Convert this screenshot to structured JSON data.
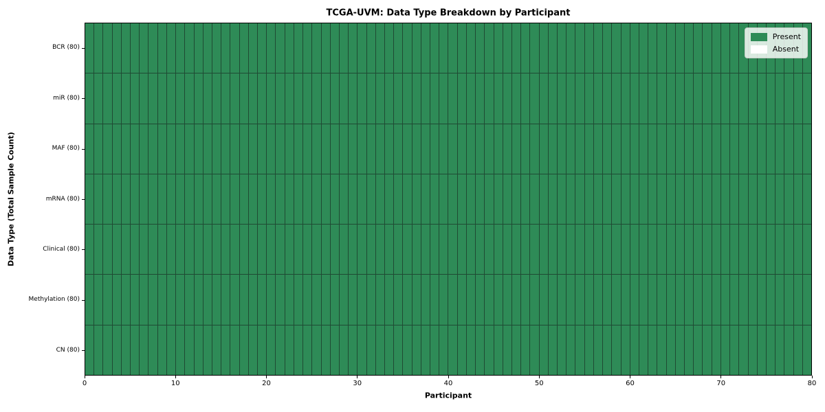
{
  "chart_data": {
    "type": "heatmap",
    "title": "TCGA-UVM: Data Type Breakdown by Participant",
    "xlabel": "Participant",
    "ylabel": "Data Type (Total Sample Count)",
    "categories_y": [
      "BCR (80)",
      "miR (80)",
      "MAF (80)",
      "mRNA (80)",
      "Clinical (80)",
      "Methylation (80)",
      "CN (80)"
    ],
    "n_participants": 80,
    "xlim": [
      0,
      80
    ],
    "x_ticks": [
      0,
      10,
      20,
      30,
      40,
      50,
      60,
      70,
      80
    ],
    "series": [
      {
        "name": "BCR (80)",
        "present": 80,
        "absent": 0
      },
      {
        "name": "miR (80)",
        "present": 80,
        "absent": 0
      },
      {
        "name": "MAF (80)",
        "present": 80,
        "absent": 0
      },
      {
        "name": "mRNA (80)",
        "present": 80,
        "absent": 0
      },
      {
        "name": "Clinical (80)",
        "present": 80,
        "absent": 0
      },
      {
        "name": "Methylation (80)",
        "present": 80,
        "absent": 0
      },
      {
        "name": "CN (80)",
        "present": 80,
        "absent": 0
      }
    ],
    "cell_states": [
      "Present",
      "Absent"
    ],
    "all_cells_value": "Present",
    "grid": false,
    "legend": {
      "position": "upper right",
      "items": [
        {
          "label": "Present",
          "color": "#2E8B57"
        },
        {
          "label": "Absent",
          "color": "#FFFFFF"
        }
      ]
    },
    "colors": {
      "present": "#2E8B57",
      "absent": "#FFFFFF",
      "cell_border": "#1F4A33",
      "spine": "#000000",
      "text": "#000000"
    }
  }
}
